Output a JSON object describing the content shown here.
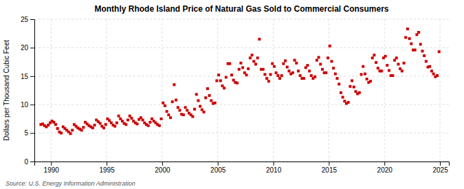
{
  "chart_data": {
    "type": "scatter",
    "title": "Monthly Rhode Island Price of Natural Gas Sold to Commercial Consumers",
    "ylabel": "Dollars per Thousand Cubic Feet",
    "annotations": [
      "Source: U.S. Energy Information Administration"
    ],
    "color": "#cc0000",
    "marker": "square",
    "grid": true,
    "xlim": [
      1988.5,
      2025.8
    ],
    "ylim": [
      0,
      25
    ],
    "xticks": [
      1990,
      1995,
      2000,
      2005,
      2010,
      2015,
      2020,
      2025
    ],
    "yticks": [
      0,
      5,
      10,
      15,
      20,
      25
    ],
    "x": [
      1989.083,
      1989.25,
      1989.417,
      1989.583,
      1989.75,
      1989.917,
      1990.083,
      1990.25,
      1990.417,
      1990.583,
      1990.75,
      1990.917,
      1991.083,
      1991.25,
      1991.417,
      1991.583,
      1991.75,
      1991.917,
      1992.083,
      1992.25,
      1992.417,
      1992.583,
      1992.75,
      1992.917,
      1993.083,
      1993.25,
      1993.417,
      1993.583,
      1993.75,
      1993.917,
      1994.083,
      1994.25,
      1994.417,
      1994.583,
      1994.75,
      1994.917,
      1995.083,
      1995.25,
      1995.417,
      1995.583,
      1995.75,
      1995.917,
      1996.083,
      1996.25,
      1996.417,
      1996.583,
      1996.75,
      1996.917,
      1997.083,
      1997.25,
      1997.417,
      1997.583,
      1997.75,
      1997.917,
      1998.083,
      1998.25,
      1998.417,
      1998.583,
      1998.75,
      1998.917,
      1999.083,
      1999.25,
      1999.417,
      1999.583,
      1999.75,
      1999.917,
      2000.083,
      2000.25,
      2000.417,
      2000.583,
      2000.75,
      2000.917,
      2001.083,
      2001.25,
      2001.417,
      2001.583,
      2001.75,
      2001.917,
      2002.083,
      2002.25,
      2002.417,
      2002.583,
      2002.75,
      2002.917,
      2003.083,
      2003.25,
      2003.417,
      2003.583,
      2003.75,
      2003.917,
      2004.083,
      2004.25,
      2004.417,
      2004.583,
      2004.75,
      2004.917,
      2005.083,
      2005.25,
      2005.417,
      2005.583,
      2005.75,
      2005.917,
      2006.083,
      2006.25,
      2006.417,
      2006.583,
      2006.75,
      2006.917,
      2007.083,
      2007.25,
      2007.417,
      2007.583,
      2007.75,
      2007.917,
      2008.083,
      2008.25,
      2008.417,
      2008.583,
      2008.75,
      2008.917,
      2009.083,
      2009.25,
      2009.417,
      2009.583,
      2009.75,
      2009.917,
      2010.083,
      2010.25,
      2010.417,
      2010.583,
      2010.75,
      2010.917,
      2011.083,
      2011.25,
      2011.417,
      2011.583,
      2011.75,
      2011.917,
      2012.083,
      2012.25,
      2012.417,
      2012.583,
      2012.75,
      2012.917,
      2013.083,
      2013.25,
      2013.417,
      2013.583,
      2013.75,
      2013.917,
      2014.083,
      2014.25,
      2014.417,
      2014.583,
      2014.75,
      2014.917,
      2015.083,
      2015.25,
      2015.417,
      2015.583,
      2015.75,
      2015.917,
      2016.083,
      2016.25,
      2016.417,
      2016.583,
      2016.75,
      2016.917,
      2017.083,
      2017.25,
      2017.417,
      2017.583,
      2017.75,
      2017.917,
      2018.083,
      2018.25,
      2018.417,
      2018.583,
      2018.75,
      2018.917,
      2019.083,
      2019.25,
      2019.417,
      2019.583,
      2019.75,
      2019.917,
      2020.083,
      2020.25,
      2020.417,
      2020.583,
      2020.75,
      2020.917,
      2021.083,
      2021.25,
      2021.417,
      2021.583,
      2021.75,
      2021.917,
      2022.083,
      2022.25,
      2022.417,
      2022.583,
      2022.75,
      2022.917,
      2023.083,
      2023.25,
      2023.417,
      2023.583,
      2023.75,
      2023.917,
      2024.083,
      2024.25,
      2024.417,
      2024.583,
      2024.75,
      2024.917
    ],
    "values": [
      6.5,
      6.6,
      6.3,
      6.1,
      6.4,
      6.8,
      7.1,
      6.9,
      6.5,
      5.8,
      5.2,
      5.0,
      6.1,
      5.8,
      5.5,
      5.2,
      4.9,
      5.5,
      6.5,
      6.2,
      5.9,
      5.7,
      5.5,
      6.0,
      6.9,
      6.6,
      6.3,
      6.1,
      5.9,
      6.4,
      7.3,
      7.0,
      6.7,
      6.2,
      5.9,
      6.5,
      7.5,
      7.2,
      6.8,
      6.4,
      6.2,
      6.8,
      8.0,
      7.5,
      7.1,
      6.7,
      6.5,
      7.3,
      8.0,
      7.6,
      7.1,
      6.8,
      6.6,
      7.4,
      7.7,
      7.3,
      6.8,
      6.5,
      6.3,
      6.9,
      7.5,
      7.1,
      6.8,
      6.5,
      6.3,
      7.5,
      10.3,
      9.8,
      8.8,
      8.2,
      7.7,
      10.5,
      13.5,
      10.8,
      9.5,
      9.0,
      8.3,
      8.2,
      9.5,
      9.0,
      8.5,
      8.2,
      7.9,
      9.2,
      11.8,
      10.7,
      9.7,
      9.1,
      8.7,
      11.2,
      12.8,
      11.6,
      10.7,
      10.2,
      10.3,
      14.2,
      15.2,
      14.2,
      13.3,
      12.9,
      14.8,
      17.2,
      17.2,
      15.2,
      14.3,
      13.9,
      13.8,
      16.2,
      17.3,
      16.5,
      15.6,
      15.2,
      16.3,
      18.2,
      18.7,
      17.6,
      17.1,
      18.2,
      21.5,
      16.2,
      16.2,
      15.3,
      14.6,
      14.1,
      15.3,
      17.2,
      16.7,
      15.6,
      15.1,
      14.6,
      15.1,
      17.2,
      17.7,
      16.6,
      15.9,
      15.4,
      15.6,
      17.8,
      17.3,
      15.9,
      15.1,
      14.6,
      14.6,
      16.5,
      16.9,
      15.9,
      15.1,
      14.6,
      14.9,
      17.8,
      18.3,
      17.1,
      16.2,
      15.6,
      15.6,
      18.2,
      20.3,
      17.6,
      16.4,
      15.4,
      14.6,
      13.6,
      12.1,
      11.3,
      10.6,
      10.2,
      10.4,
      13.2,
      14.2,
      13.1,
      12.3,
      11.9,
      12.1,
      15.3,
      16.7,
      15.4,
      14.5,
      13.9,
      14.1,
      18.2,
      18.7,
      17.4,
      16.4,
      15.9,
      15.9,
      18.2,
      18.5,
      16.9,
      16.0,
      15.1,
      15.1,
      17.8,
      18.2,
      17.1,
      16.3,
      15.9,
      17.3,
      21.8,
      23.3,
      21.6,
      20.7,
      19.6,
      19.6,
      22.3,
      22.7,
      20.6,
      19.4,
      18.6,
      17.6,
      16.6,
      16.7,
      15.9,
      15.4,
      14.9,
      15.1,
      19.3
    ]
  }
}
